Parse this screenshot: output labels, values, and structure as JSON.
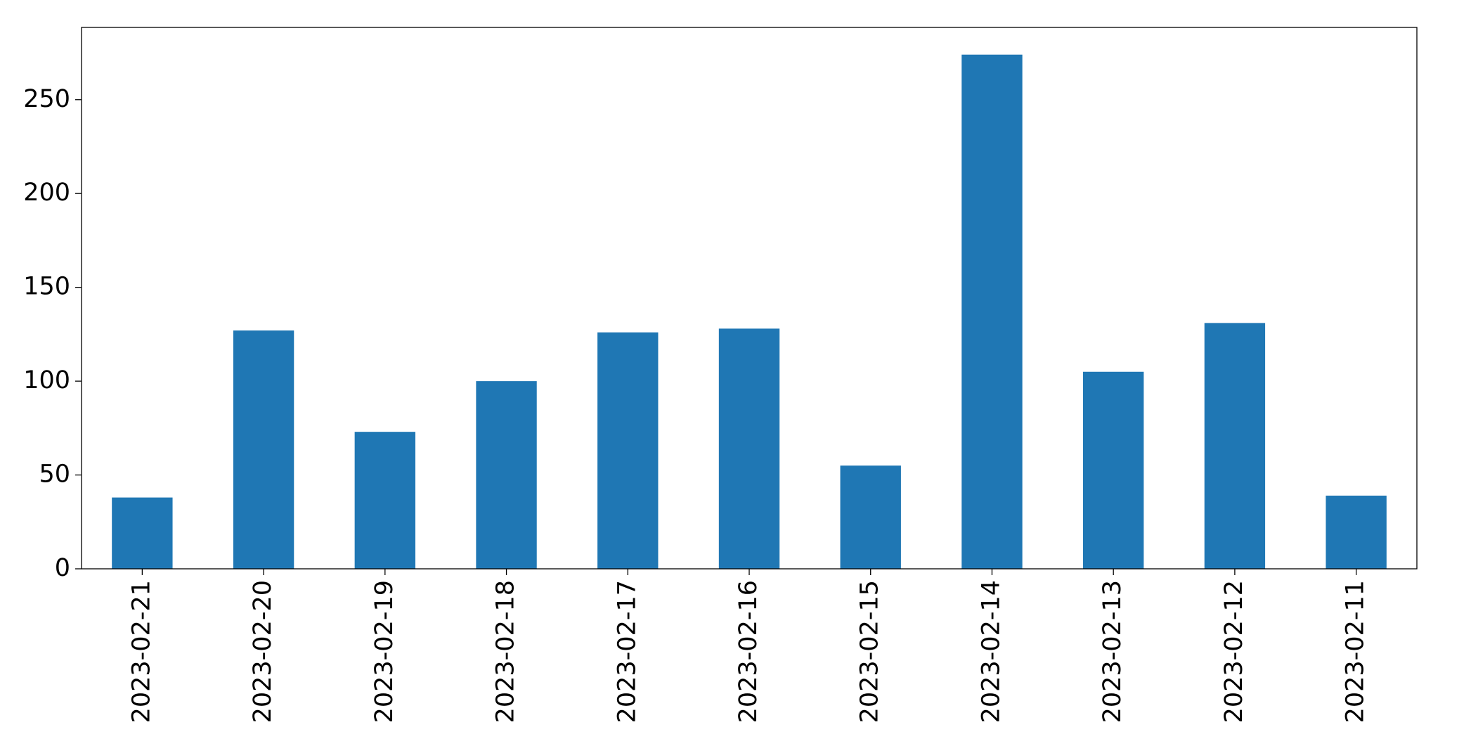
{
  "chart_data": {
    "type": "bar",
    "categories": [
      "2023-02-21",
      "2023-02-20",
      "2023-02-19",
      "2023-02-18",
      "2023-02-17",
      "2023-02-16",
      "2023-02-15",
      "2023-02-14",
      "2023-02-13",
      "2023-02-12",
      "2023-02-11"
    ],
    "values": [
      38,
      127,
      73,
      100,
      126,
      128,
      55,
      274,
      105,
      131,
      39
    ],
    "color": "#1f77b4",
    "ylim": [
      0,
      288.5
    ],
    "yticks": [
      0,
      50,
      100,
      150,
      200,
      250
    ],
    "grid": false
  }
}
